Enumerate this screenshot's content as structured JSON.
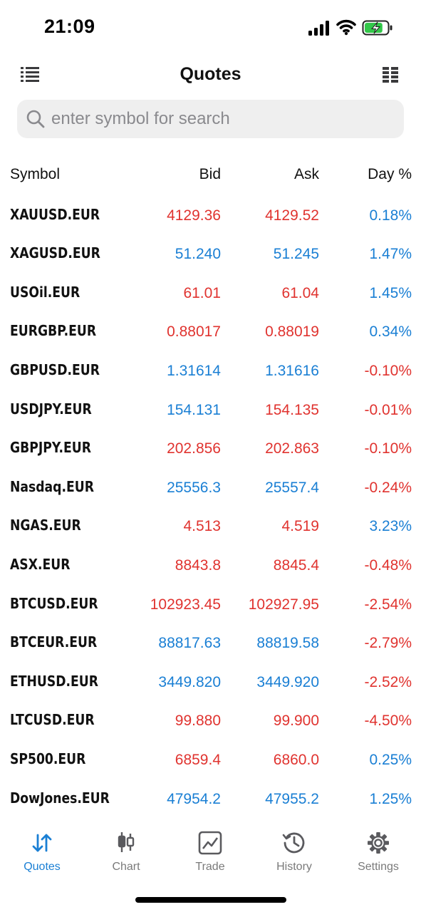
{
  "status_bar": {
    "time": "21:09"
  },
  "nav": {
    "title": "Quotes"
  },
  "search": {
    "placeholder": "enter symbol for search",
    "value": ""
  },
  "table": {
    "headers": {
      "symbol": "Symbol",
      "bid": "Bid",
      "ask": "Ask",
      "day": "Day %"
    },
    "rows": [
      {
        "symbol": "XAUUSD.EUR",
        "bid": "4129.36",
        "ask": "4129.52",
        "day": "0.18%",
        "bid_dir": "down",
        "ask_dir": "down",
        "day_dir": "up"
      },
      {
        "symbol": "XAGUSD.EUR",
        "bid": "51.240",
        "ask": "51.245",
        "day": "1.47%",
        "bid_dir": "up",
        "ask_dir": "up",
        "day_dir": "up"
      },
      {
        "symbol": "USOil.EUR",
        "bid": "61.01",
        "ask": "61.04",
        "day": "1.45%",
        "bid_dir": "down",
        "ask_dir": "down",
        "day_dir": "up"
      },
      {
        "symbol": "EURGBP.EUR",
        "bid": "0.88017",
        "ask": "0.88019",
        "day": "0.34%",
        "bid_dir": "down",
        "ask_dir": "down",
        "day_dir": "up"
      },
      {
        "symbol": "GBPUSD.EUR",
        "bid": "1.31614",
        "ask": "1.31616",
        "day": "-0.10%",
        "bid_dir": "up",
        "ask_dir": "up",
        "day_dir": "down"
      },
      {
        "symbol": "USDJPY.EUR",
        "bid": "154.131",
        "ask": "154.135",
        "day": "-0.01%",
        "bid_dir": "up",
        "ask_dir": "down",
        "day_dir": "down"
      },
      {
        "symbol": "GBPJPY.EUR",
        "bid": "202.856",
        "ask": "202.863",
        "day": "-0.10%",
        "bid_dir": "down",
        "ask_dir": "down",
        "day_dir": "down"
      },
      {
        "symbol": "Nasdaq.EUR",
        "bid": "25556.3",
        "ask": "25557.4",
        "day": "-0.24%",
        "bid_dir": "up",
        "ask_dir": "up",
        "day_dir": "down"
      },
      {
        "symbol": "NGAS.EUR",
        "bid": "4.513",
        "ask": "4.519",
        "day": "3.23%",
        "bid_dir": "down",
        "ask_dir": "down",
        "day_dir": "up"
      },
      {
        "symbol": "ASX.EUR",
        "bid": "8843.8",
        "ask": "8845.4",
        "day": "-0.48%",
        "bid_dir": "down",
        "ask_dir": "down",
        "day_dir": "down"
      },
      {
        "symbol": "BTCUSD.EUR",
        "bid": "102923.45",
        "ask": "102927.95",
        "day": "-2.54%",
        "bid_dir": "down",
        "ask_dir": "down",
        "day_dir": "down"
      },
      {
        "symbol": "BTCEUR.EUR",
        "bid": "88817.63",
        "ask": "88819.58",
        "day": "-2.79%",
        "bid_dir": "up",
        "ask_dir": "up",
        "day_dir": "down"
      },
      {
        "symbol": "ETHUSD.EUR",
        "bid": "3449.820",
        "ask": "3449.920",
        "day": "-2.52%",
        "bid_dir": "up",
        "ask_dir": "up",
        "day_dir": "down"
      },
      {
        "symbol": "LTCUSD.EUR",
        "bid": "99.880",
        "ask": "99.900",
        "day": "-4.50%",
        "bid_dir": "down",
        "ask_dir": "down",
        "day_dir": "down"
      },
      {
        "symbol": "SP500.EUR",
        "bid": "6859.4",
        "ask": "6860.0",
        "day": "0.25%",
        "bid_dir": "down",
        "ask_dir": "down",
        "day_dir": "up"
      },
      {
        "symbol": "DowJones.EUR",
        "bid": "47954.2",
        "ask": "47955.2",
        "day": "1.25%",
        "bid_dir": "up",
        "ask_dir": "up",
        "day_dir": "up"
      }
    ]
  },
  "tabs": [
    {
      "label": "Quotes",
      "icon": "arrows-up-down-icon",
      "active": true
    },
    {
      "label": "Chart",
      "icon": "candlestick-icon",
      "active": false
    },
    {
      "label": "Trade",
      "icon": "trend-chart-icon",
      "active": false
    },
    {
      "label": "History",
      "icon": "history-clock-icon",
      "active": false
    },
    {
      "label": "Settings",
      "icon": "gear-icon",
      "active": false
    }
  ],
  "colors": {
    "up": "#1a7fd4",
    "down": "#e0332f",
    "active_tab": "#1a7fd4",
    "inactive_tab": "#7a7a7a"
  },
  "battery": {
    "charging": true,
    "level": 0.8
  }
}
